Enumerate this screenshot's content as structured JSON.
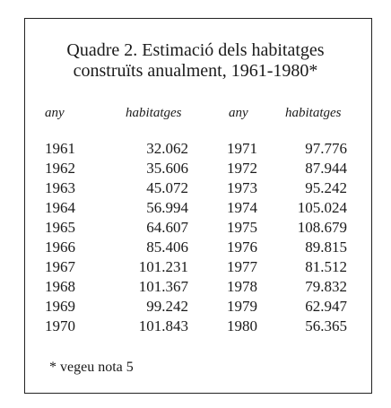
{
  "header": {
    "title_lines": [
      "Quadre 2. Estimació dels habitatges",
      "construïts anualment, 1961-1980*"
    ]
  },
  "table": {
    "columns": [
      "any",
      "habitatges",
      "any",
      "habitatges"
    ],
    "rows": [
      [
        "1961",
        "32.062",
        "1971",
        "97.776"
      ],
      [
        "1962",
        "35.606",
        "1972",
        "87.944"
      ],
      [
        "1963",
        "45.072",
        "1973",
        "95.242"
      ],
      [
        "1964",
        "56.994",
        "1974",
        "105.024"
      ],
      [
        "1965",
        "64.607",
        "1975",
        "108.679"
      ],
      [
        "1966",
        "85.406",
        "1976",
        "89.815"
      ],
      [
        "1967",
        "101.231",
        "1977",
        "81.512"
      ],
      [
        "1968",
        "101.367",
        "1978",
        "79.832"
      ],
      [
        "1969",
        "99.242",
        "1979",
        "62.947"
      ],
      [
        "1970",
        "101.843",
        "1980",
        "56.365"
      ]
    ]
  },
  "footnote": "* vegeu nota 5"
}
